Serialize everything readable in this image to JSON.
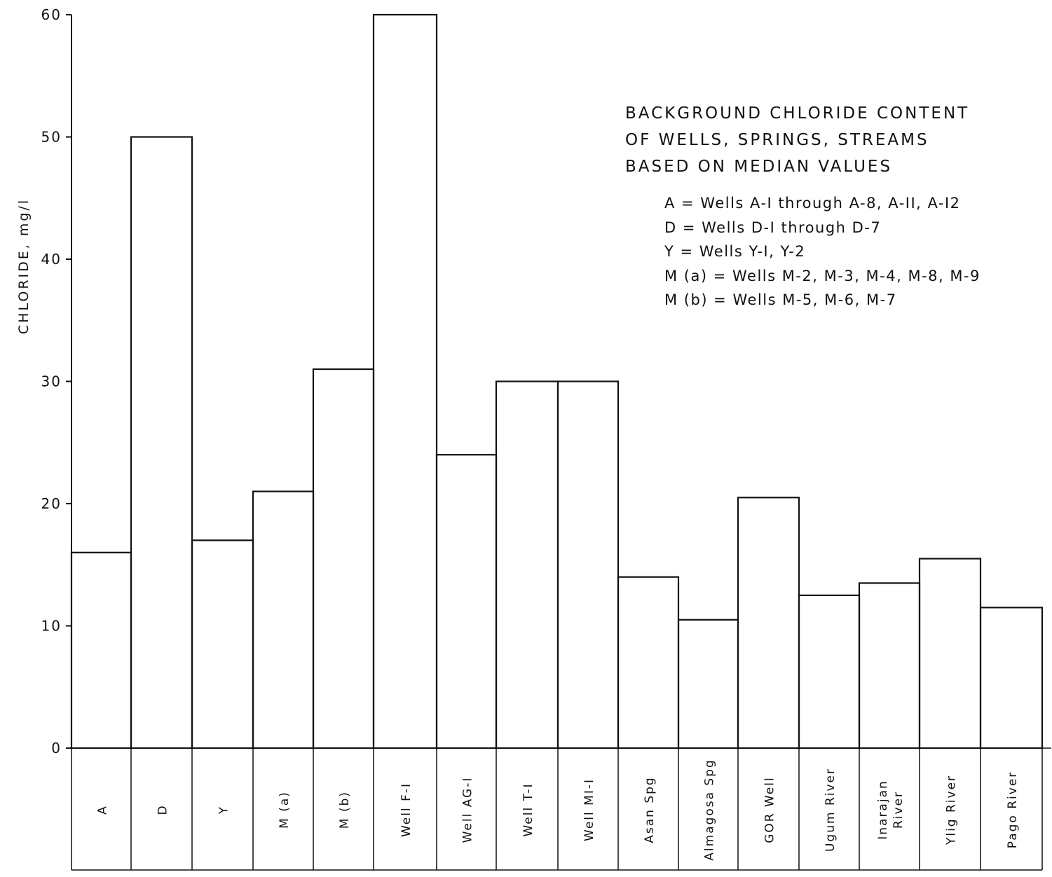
{
  "chart_data": {
    "type": "bar",
    "title": [
      "BACKGROUND CHLORIDE CONTENT",
      "OF WELLS, SPRINGS, STREAMS",
      "BASED ON MEDIAN VALUES"
    ],
    "ylabel": "CHLORIDE, mg/l",
    "xlabel": "",
    "ylim": [
      0,
      60
    ],
    "yticks": [
      "0",
      "10",
      "20",
      "30",
      "40",
      "50",
      "60"
    ],
    "categories": [
      [
        "A"
      ],
      [
        "D"
      ],
      [
        "Y"
      ],
      [
        "M (a)"
      ],
      [
        "M (b)"
      ],
      [
        "Well F-I"
      ],
      [
        "Well AG-I"
      ],
      [
        "Well T-I"
      ],
      [
        "Well MI-I"
      ],
      [
        "Asan Spg"
      ],
      [
        "Almagosa Spg"
      ],
      [
        "GOR Well"
      ],
      [
        "Ugum River"
      ],
      [
        "Inarajan",
        "River"
      ],
      [
        "Ylig River"
      ],
      [
        "Pago River"
      ]
    ],
    "values": [
      16,
      50,
      17,
      21,
      31,
      60,
      24,
      30,
      30,
      14,
      10.5,
      20.5,
      12.5,
      13.5,
      15.5,
      11.5
    ],
    "grid": false,
    "legend": [
      "A = Wells A-I through A-8, A-II, A-I2",
      "D = Wells D-I through D-7",
      "Y = Wells Y-I, Y-2",
      "M (a) = Wells M-2, M-3, M-4, M-8, M-9",
      "M (b) = Wells M-5, M-6, M-7"
    ],
    "colors": {
      "ink": "#111111",
      "background": "#ffffff"
    }
  }
}
